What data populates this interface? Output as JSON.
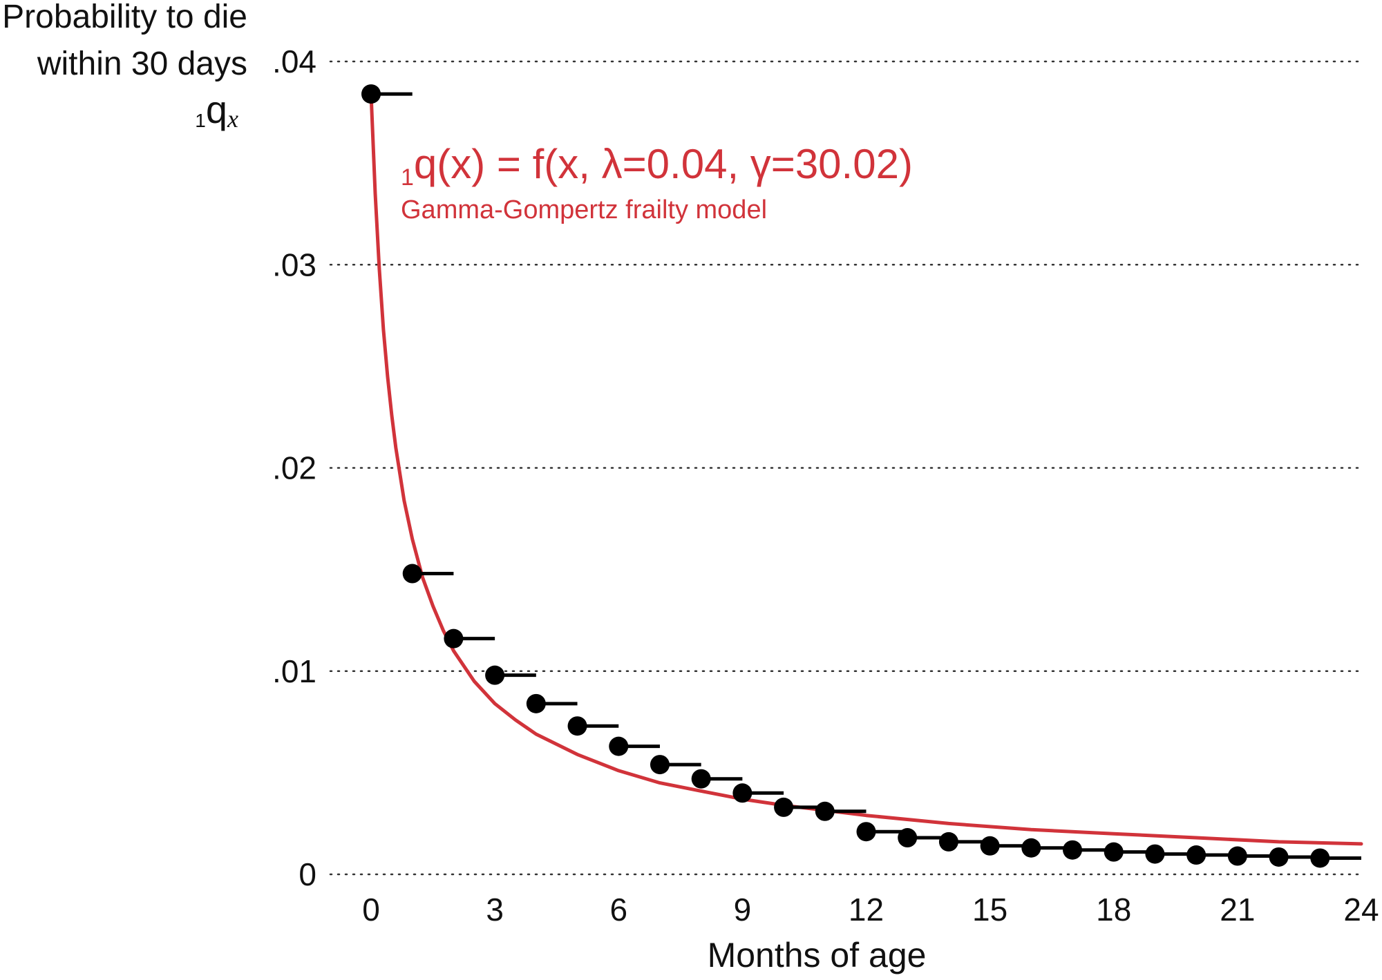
{
  "chart_data": {
    "type": "scatter",
    "xlabel": "Months of age",
    "ylabel_lines": [
      "Probability to die",
      "within 30 days"
    ],
    "ylabel_symbol": {
      "subscript": "1",
      "letter": "q",
      "index": "x"
    },
    "xlim": [
      0,
      24
    ],
    "ylim": [
      0,
      0.04
    ],
    "x_ticks": [
      0,
      3,
      6,
      9,
      12,
      15,
      18,
      21,
      24
    ],
    "x_tick_labels": [
      "0",
      "3",
      "6",
      "9",
      "12",
      "15",
      "18",
      "21",
      "24"
    ],
    "y_ticks": [
      0,
      0.01,
      0.02,
      0.03,
      0.04
    ],
    "y_tick_labels": [
      "0",
      ".01",
      ".02",
      ".03",
      ".04"
    ],
    "grid": "horizontal dotted",
    "observed": {
      "interval_width": 1,
      "points": [
        {
          "x": 0,
          "y": 0.0384
        },
        {
          "x": 1,
          "y": 0.0148
        },
        {
          "x": 2,
          "y": 0.0116
        },
        {
          "x": 3,
          "y": 0.0098
        },
        {
          "x": 4,
          "y": 0.0084
        },
        {
          "x": 5,
          "y": 0.0073
        },
        {
          "x": 6,
          "y": 0.0063
        },
        {
          "x": 7,
          "y": 0.0054
        },
        {
          "x": 8,
          "y": 0.0047
        },
        {
          "x": 9,
          "y": 0.004
        },
        {
          "x": 10,
          "y": 0.0033
        },
        {
          "x": 11,
          "y": 0.0031
        },
        {
          "x": 12,
          "y": 0.0021
        },
        {
          "x": 13,
          "y": 0.0018
        },
        {
          "x": 14,
          "y": 0.0016
        },
        {
          "x": 15,
          "y": 0.0014
        },
        {
          "x": 16,
          "y": 0.0013
        },
        {
          "x": 17,
          "y": 0.0012
        },
        {
          "x": 18,
          "y": 0.0011
        },
        {
          "x": 19,
          "y": 0.001
        },
        {
          "x": 20,
          "y": 0.00095
        },
        {
          "x": 21,
          "y": 0.0009
        },
        {
          "x": 22,
          "y": 0.00085
        },
        {
          "x": 23,
          "y": 0.0008
        }
      ]
    },
    "model_curve": {
      "name": "Gamma-Gompertz frailty model",
      "color": "#d1333a",
      "x": [
        0,
        0.1,
        0.2,
        0.3,
        0.4,
        0.5,
        0.6,
        0.8,
        1.0,
        1.25,
        1.5,
        1.75,
        2.0,
        2.5,
        3.0,
        3.5,
        4.0,
        5.0,
        6.0,
        7.0,
        8.0,
        9.0,
        10.0,
        12.0,
        14.0,
        16.0,
        18.0,
        20.0,
        22.0,
        24.0
      ],
      "y": [
        0.0384,
        0.0335,
        0.0298,
        0.0268,
        0.0245,
        0.0226,
        0.021,
        0.0184,
        0.0165,
        0.0146,
        0.0132,
        0.012,
        0.011,
        0.0095,
        0.0084,
        0.0076,
        0.0069,
        0.0059,
        0.0051,
        0.0045,
        0.0041,
        0.0037,
        0.0034,
        0.0029,
        0.0025,
        0.0022,
        0.002,
        0.0018,
        0.0016,
        0.0015
      ]
    },
    "annotation": {
      "formula_subscript": "1",
      "formula": "q(x) = f(x, λ=0.04, γ=30.02)",
      "subtitle": "Gamma-Gompertz frailty model"
    },
    "colors": {
      "points": "#000000",
      "curve": "#d1333a",
      "grid": "#333333"
    }
  }
}
